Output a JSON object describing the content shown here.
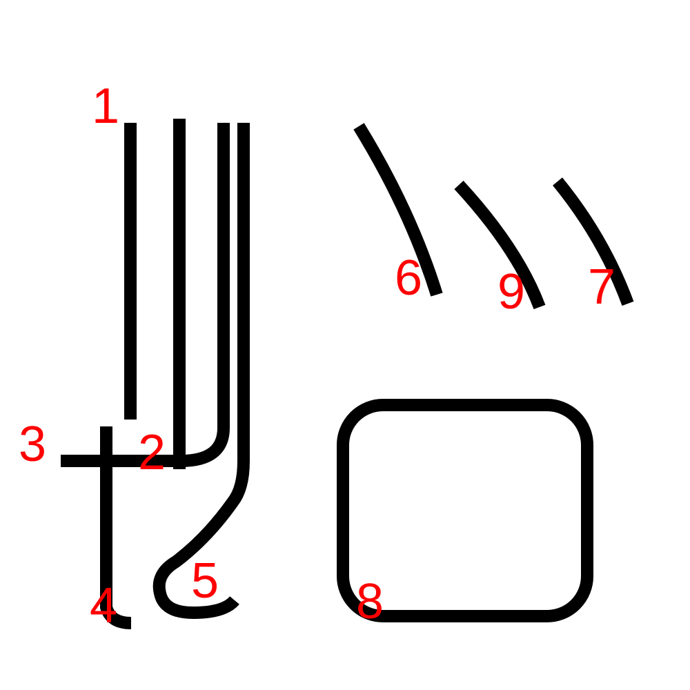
{
  "colors": {
    "background": "#ffffff",
    "stroke": "#000000",
    "label": "#ff0000"
  },
  "strokes": [
    {
      "id": "1",
      "label": "1"
    },
    {
      "id": "2",
      "label": "2"
    },
    {
      "id": "3",
      "label": "3"
    },
    {
      "id": "4",
      "label": "4"
    },
    {
      "id": "5",
      "label": "5"
    },
    {
      "id": "6",
      "label": "6"
    },
    {
      "id": "7",
      "label": "7"
    },
    {
      "id": "8",
      "label": "8"
    },
    {
      "id": "9",
      "label": "9"
    }
  ]
}
